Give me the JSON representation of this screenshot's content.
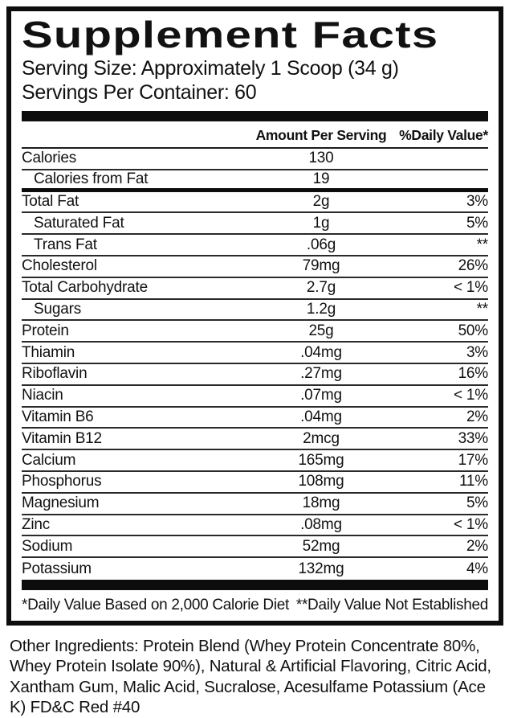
{
  "title": "Supplement Facts",
  "serving": {
    "size_line": "Serving Size: Approximately 1 Scoop (34 g)",
    "per_container_line": "Servings Per Container: 60"
  },
  "table": {
    "col_amount": "Amount Per Serving",
    "col_dv": "%Daily Value*",
    "rows": [
      {
        "label": "Calories",
        "amount": "130",
        "dv": "",
        "indent": false,
        "sep": "thin"
      },
      {
        "label": "Calories from Fat",
        "amount": "19",
        "dv": "",
        "indent": true,
        "sep": "medium"
      },
      {
        "label": "Total Fat",
        "amount": "2g",
        "dv": "3%",
        "indent": false,
        "sep": "thin"
      },
      {
        "label": "Saturated Fat",
        "amount": "1g",
        "dv": "5%",
        "indent": true,
        "sep": "thin"
      },
      {
        "label": "Trans Fat",
        "amount": ".06g",
        "dv": "**",
        "indent": true,
        "sep": "thin"
      },
      {
        "label": "Cholesterol",
        "amount": "79mg",
        "dv": "26%",
        "indent": false,
        "sep": "thin"
      },
      {
        "label": "Total Carbohydrate",
        "amount": "2.7g",
        "dv": "< 1%",
        "indent": false,
        "sep": "thin"
      },
      {
        "label": "Sugars",
        "amount": "1.2g",
        "dv": "**",
        "indent": true,
        "sep": "thin"
      },
      {
        "label": "Protein",
        "amount": "25g",
        "dv": "50%",
        "indent": false,
        "sep": "thin"
      },
      {
        "label": "Thiamin",
        "amount": ".04mg",
        "dv": "3%",
        "indent": false,
        "sep": "thin"
      },
      {
        "label": "Riboflavin",
        "amount": ".27mg",
        "dv": "16%",
        "indent": false,
        "sep": "thin"
      },
      {
        "label": "Niacin",
        "amount": ".07mg",
        "dv": "< 1%",
        "indent": false,
        "sep": "thin"
      },
      {
        "label": "Vitamin B6",
        "amount": ".04mg",
        "dv": "2%",
        "indent": false,
        "sep": "thin"
      },
      {
        "label": "Vitamin B12",
        "amount": "2mcg",
        "dv": "33%",
        "indent": false,
        "sep": "thin"
      },
      {
        "label": "Calcium",
        "amount": "165mg",
        "dv": "17%",
        "indent": false,
        "sep": "thin"
      },
      {
        "label": "Phosphorus",
        "amount": "108mg",
        "dv": "11%",
        "indent": false,
        "sep": "thin"
      },
      {
        "label": "Magnesium",
        "amount": "18mg",
        "dv": "5%",
        "indent": false,
        "sep": "thin"
      },
      {
        "label": "Zinc",
        "amount": ".08mg",
        "dv": "< 1%",
        "indent": false,
        "sep": "thin"
      },
      {
        "label": "Sodium",
        "amount": "52mg",
        "dv": "2%",
        "indent": false,
        "sep": "thin"
      },
      {
        "label": "Potassium",
        "amount": "132mg",
        "dv": "4%",
        "indent": false,
        "sep": "none"
      }
    ]
  },
  "footnotes": {
    "left": "*Daily Value Based on 2,000 Calorie Diet",
    "right": "**Daily Value Not Established"
  },
  "other_ingredients": "Other Ingredients: Protein Blend (Whey Protein Concentrate 80%, Whey Protein Isolate 90%), Natural & Artificial Flavoring, Citric Acid, Xantham Gum, Malic Acid, Sucralose, Acesulfame Potassium (Ace K) FD&C Red #40",
  "colors": {
    "ink": "#111111",
    "background": "#ffffff",
    "rule": "#0d0d0d"
  }
}
